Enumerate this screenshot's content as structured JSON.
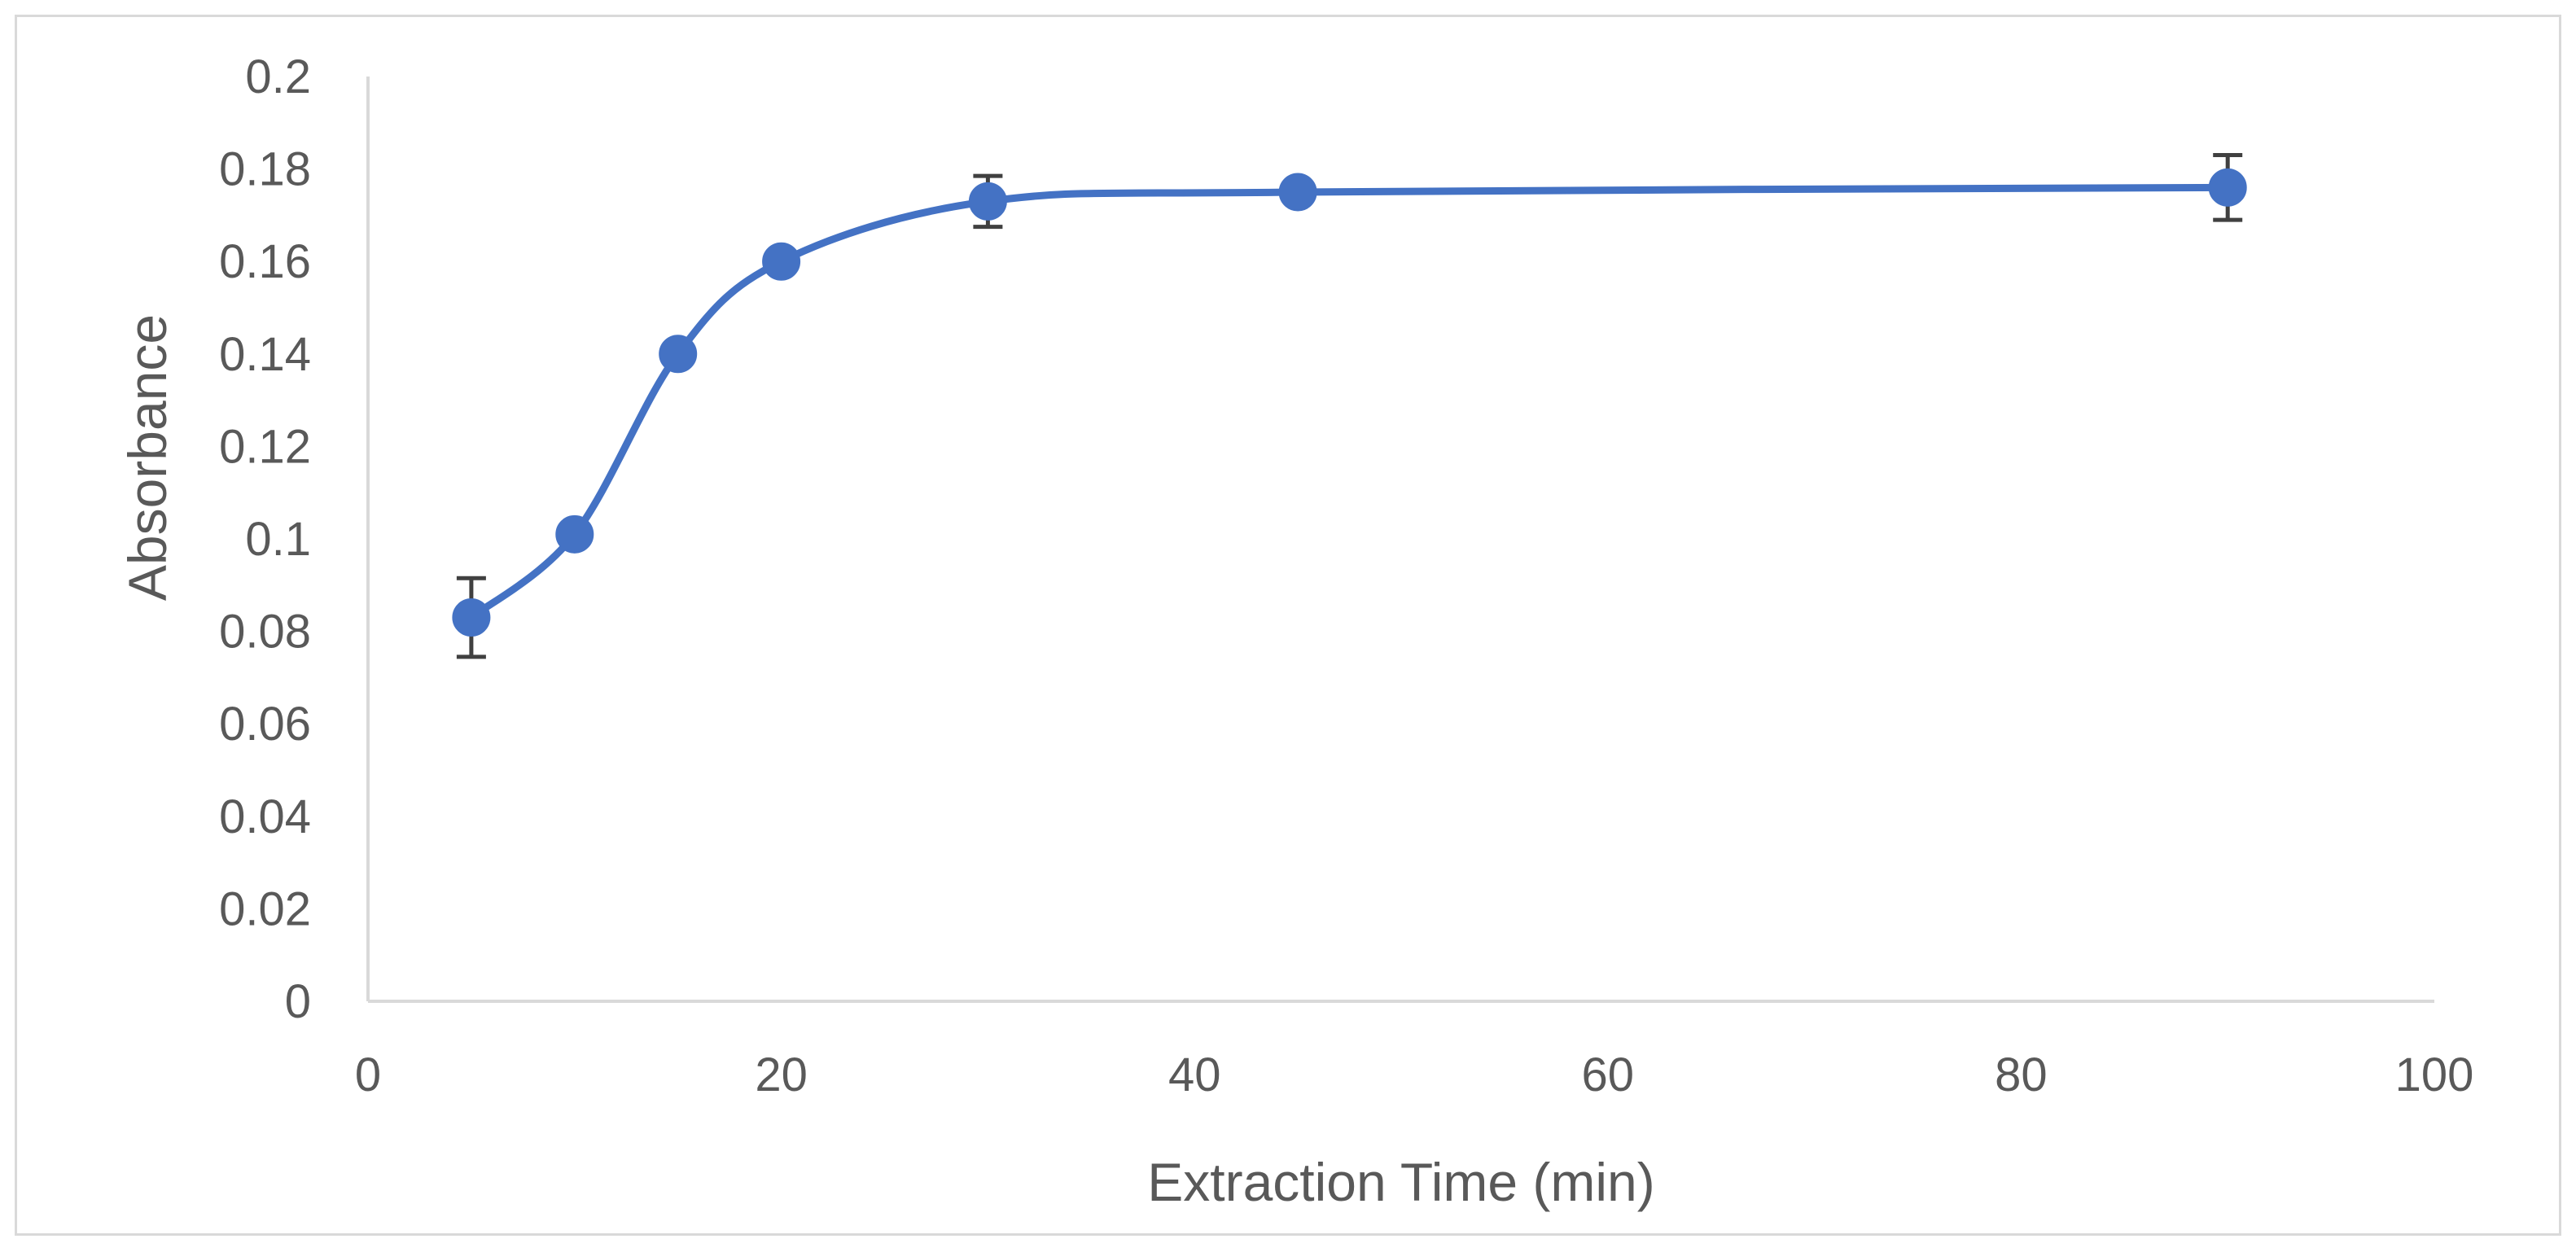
{
  "chart_data": {
    "type": "scatter",
    "title": "",
    "xlabel": "Extraction Time (min)",
    "ylabel": "Absorbance",
    "xlim": [
      0,
      100
    ],
    "ylim": [
      0,
      0.2
    ],
    "x_ticks": [
      0,
      20,
      40,
      60,
      80,
      100
    ],
    "x_tick_labels": [
      "0",
      "20",
      "40",
      "60",
      "80",
      "100"
    ],
    "y_ticks": [
      0,
      0.02,
      0.04,
      0.06,
      0.08,
      0.1,
      0.12,
      0.14,
      0.16,
      0.18,
      0.2
    ],
    "y_tick_labels": [
      "0",
      "0.02",
      "0.04",
      "0.06",
      "0.08",
      "0.1",
      "0.12",
      "0.14",
      "0.16",
      "0.18",
      "0.2"
    ],
    "grid": false,
    "legend": "none",
    "smooth_line": true,
    "series": [
      {
        "x": [
          5,
          10,
          15,
          20,
          30,
          45,
          90
        ],
        "y": [
          0.083,
          0.101,
          0.14,
          0.16,
          0.173,
          0.175,
          0.176
        ],
        "error": [
          0.0085,
          0.002,
          0.0015,
          0.0015,
          0.0055,
          0.001,
          0.007
        ],
        "color": "#4472c4",
        "error_color": "#404040"
      }
    ],
    "axis_color": "#d9d9d9",
    "text_color": "#595959"
  }
}
